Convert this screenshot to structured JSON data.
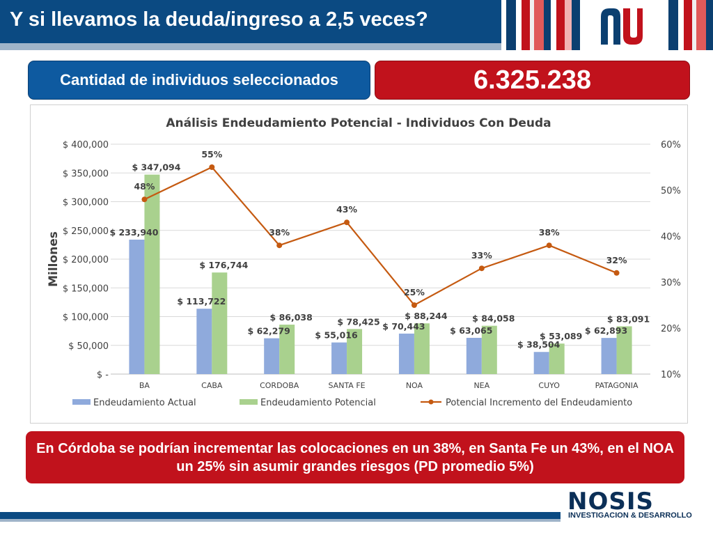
{
  "header": {
    "title": "Y si llevamos la deuda/ingreso a 2,5 veces?",
    "stripe_colors": [
      "#0b3f70",
      "#ffffff",
      "#c1121c",
      "#f0f0f0",
      "#e05a5a",
      "#0b3f70",
      "#ffffff",
      "#c1121c",
      "#f2b2b2",
      "#0b3f70"
    ]
  },
  "summary": {
    "label": "Cantidad de individuos seleccionados",
    "value": "6.325.238"
  },
  "chart_data": {
    "type": "bar",
    "title": "Análisis Endeudamiento Potencial - Individuos Con Deuda",
    "ylabel": "Millones",
    "categories": [
      "BA",
      "CABA",
      "CORDOBA",
      "SANTA FE",
      "NOA",
      "NEA",
      "CUYO",
      "PATAGONIA"
    ],
    "ylim": [
      0,
      400000
    ],
    "y_ticks": [
      "$ -",
      "$ 50,000",
      "$ 100,000",
      "$ 150,000",
      "$ 200,000",
      "$ 250,000",
      "$ 300,000",
      "$ 350,000",
      "$ 400,000"
    ],
    "y2lim": [
      0.1,
      0.6
    ],
    "y2_ticks": [
      "10%",
      "20%",
      "30%",
      "40%",
      "50%",
      "60%"
    ],
    "series": [
      {
        "name": "Endeudamiento Actual",
        "kind": "bar",
        "color": "#8faadc",
        "values": [
          233940,
          113722,
          62279,
          55016,
          70443,
          63065,
          38504,
          62893
        ],
        "labels": [
          "$ 233,940",
          "$ 113,722",
          "$ 62,279",
          "$ 55,016",
          "$ 70,443",
          "$ 63,065",
          "$ 38,504",
          "$ 62,893"
        ]
      },
      {
        "name": "Endeudamiento Potencial",
        "kind": "bar",
        "color": "#a9d18e",
        "values": [
          347094,
          176744,
          86038,
          78425,
          88244,
          84058,
          53089,
          83091
        ],
        "labels": [
          "$ 347,094",
          "$ 176,744",
          "$ 86,038",
          "$ 78,425",
          "$ 88,244",
          "$ 84,058",
          "$ 53,089",
          "$ 83,091"
        ]
      },
      {
        "name": "Potencial Incremento del Endeudamiento",
        "kind": "line",
        "axis": "right",
        "color": "#c55a11",
        "values": [
          0.48,
          0.55,
          0.38,
          0.43,
          0.25,
          0.33,
          0.38,
          0.32
        ],
        "labels": [
          "48%",
          "55%",
          "38%",
          "43%",
          "25%",
          "33%",
          "38%",
          "32%"
        ]
      }
    ],
    "grid": true,
    "legend_position": "bottom"
  },
  "conclusion": {
    "text": "En Córdoba se podrían incrementar las colocaciones en un 38%, en Santa Fe un 43%, en el NOA un 25% sin asumir grandes riesgos (PD promedio 5%)"
  },
  "footer": {
    "brand": "NOSIS",
    "tagline": "INVESTIGACION & DESARROLLO"
  }
}
